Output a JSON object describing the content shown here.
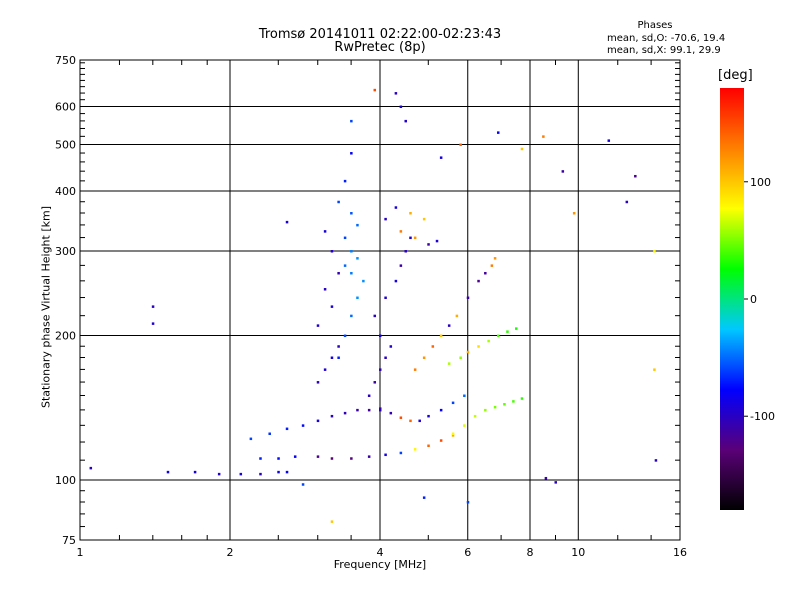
{
  "header": {
    "title": "Tromsø 20141011 02:22:00-02:23:43",
    "subtitle": "RwPretec (8p)",
    "phase_heading": "Phases",
    "phase_o": "mean, sd,O: -70.6, 19.4",
    "phase_x": "mean, sd,X:  99.1, 29.9"
  },
  "chart_data": {
    "type": "scatter",
    "title": "Tromsø 20141011 02:22:00-02:23:43",
    "subtitle": "RwPretec (8p)",
    "xlabel": "Frequency [MHz]",
    "ylabel": "Stationary phase Virtual Height [km]",
    "xscale": "log",
    "yscale": "log",
    "xlim": [
      1,
      16
    ],
    "ylim": [
      75,
      750
    ],
    "x_ticks": [
      1,
      2,
      4,
      6,
      8,
      10,
      16
    ],
    "y_ticks": [
      75,
      100,
      200,
      300,
      400,
      500,
      600,
      750
    ],
    "grid": true,
    "colorbar": {
      "label": "[deg]",
      "range": [
        -180,
        180
      ],
      "ticks": [
        -100,
        0,
        100
      ],
      "colors": [
        "#000000",
        "#5a0078",
        "#0000ff",
        "#00c8ff",
        "#00ff00",
        "#ffff00",
        "#ff8000",
        "#ff0000"
      ]
    },
    "series": [
      {
        "x": [
          1.5,
          1.7,
          1.9,
          2.1,
          2.3,
          2.5,
          2.6
        ],
        "y": [
          104,
          104,
          103,
          103,
          103,
          104,
          104
        ],
        "phase": [
          -85,
          -90,
          -95,
          -90,
          -100,
          -85,
          -80
        ]
      },
      {
        "x": [
          2.3,
          2.5,
          2.7,
          3.0,
          3.2,
          3.5,
          3.8,
          4.1,
          4.4,
          4.7,
          5.0,
          5.3,
          5.6
        ],
        "y": [
          111,
          111,
          112,
          112,
          111,
          111,
          112,
          113,
          114,
          116,
          118,
          121,
          124
        ],
        "phase": [
          -70,
          -75,
          -80,
          -120,
          -130,
          -125,
          -110,
          -90,
          -60,
          80,
          140,
          150,
          110
        ]
      },
      {
        "x": [
          2.2,
          2.4,
          2.6,
          2.8,
          3.0,
          3.2,
          3.4,
          3.6,
          3.8,
          4.0
        ],
        "y": [
          122,
          125,
          128,
          130,
          133,
          136,
          138,
          140,
          140,
          141
        ],
        "phase": [
          -60,
          -65,
          -70,
          -75,
          -90,
          -100,
          -105,
          -110,
          -115,
          -110
        ]
      },
      {
        "x": [
          4.0,
          4.2,
          4.4,
          4.6,
          4.8,
          5.0,
          5.3,
          5.6,
          5.9
        ],
        "y": [
          140,
          138,
          135,
          133,
          133,
          136,
          140,
          145,
          150
        ],
        "phase": [
          -100,
          -105,
          150,
          140,
          -95,
          -90,
          -80,
          -60,
          -50
        ]
      },
      {
        "x": [
          5.6,
          5.9,
          6.2,
          6.5,
          6.8,
          7.1,
          7.4,
          7.7
        ],
        "y": [
          125,
          130,
          136,
          140,
          142,
          144,
          146,
          148
        ],
        "phase": [
          80,
          70,
          65,
          55,
          50,
          45,
          40,
          35
        ]
      },
      {
        "x": [
          5.5,
          5.8,
          6.0,
          6.3,
          6.6,
          6.9,
          7.2,
          7.5
        ],
        "y": [
          175,
          180,
          185,
          190,
          195,
          200,
          204,
          207
        ],
        "phase": [
          60,
          55,
          110,
          90,
          60,
          40,
          35,
          30
        ]
      },
      {
        "x": [
          3.3,
          3.4,
          3.5,
          3.6,
          3.7,
          3.5,
          3.4,
          3.6,
          3.5,
          3.4,
          3.6,
          3.5,
          3.3,
          3.4,
          3.5,
          3.5
        ],
        "y": [
          180,
          200,
          220,
          240,
          260,
          270,
          280,
          290,
          300,
          320,
          340,
          360,
          380,
          420,
          480,
          560
        ],
        "phase": [
          -70,
          -60,
          -50,
          -40,
          -40,
          -45,
          -50,
          -40,
          -45,
          -60,
          -50,
          -55,
          -60,
          -70,
          -80,
          -60
        ]
      },
      {
        "x": [
          3.0,
          3.1,
          3.2,
          3.3,
          3.0,
          3.2,
          3.1,
          3.3,
          3.2,
          3.1
        ],
        "y": [
          160,
          170,
          180,
          190,
          210,
          230,
          250,
          270,
          300,
          330
        ],
        "phase": [
          -100,
          -95,
          -90,
          -100,
          -95,
          -90,
          -100,
          -105,
          -95,
          -90
        ]
      },
      {
        "x": [
          3.8,
          3.9,
          4.0,
          4.1,
          4.2,
          4.0,
          3.9,
          4.1,
          4.3,
          4.4,
          4.5,
          4.6
        ],
        "y": [
          150,
          160,
          170,
          180,
          190,
          200,
          220,
          240,
          260,
          280,
          300,
          320
        ],
        "phase": [
          -100,
          -110,
          -105,
          -100,
          -95,
          -90,
          -100,
          -95,
          -90,
          -110,
          -100,
          -95
        ]
      },
      {
        "x": [
          4.7,
          4.9,
          5.1,
          5.3,
          5.5,
          5.7,
          6.0,
          6.3,
          6.5,
          6.7,
          6.8
        ],
        "y": [
          170,
          180,
          190,
          200,
          210,
          220,
          240,
          260,
          270,
          280,
          290
        ],
        "phase": [
          130,
          120,
          140,
          100,
          -100,
          110,
          -110,
          -120,
          -115,
          130,
          120
        ]
      },
      {
        "x": [
          4.1,
          4.4,
          4.7,
          5.0,
          5.2,
          4.3,
          4.6,
          4.9
        ],
        "y": [
          350,
          330,
          320,
          310,
          315,
          370,
          360,
          350
        ],
        "phase": [
          -100,
          130,
          120,
          -110,
          -95,
          -90,
          110,
          100
        ]
      },
      {
        "x": [
          3.9,
          4.3,
          4.4,
          4.5,
          5.3,
          5.8,
          6.9,
          7.7,
          8.5,
          9.3,
          9.8,
          11.5,
          12.5,
          13.0,
          14.2
        ],
        "y": [
          650,
          640,
          600,
          560,
          470,
          500,
          530,
          490,
          520,
          440,
          360,
          510,
          380,
          430,
          300
        ],
        "phase": [
          150,
          -100,
          -90,
          -95,
          -90,
          140,
          -80,
          100,
          130,
          -110,
          120,
          -90,
          -100,
          -120,
          80
        ]
      },
      {
        "x": [
          1.05,
          1.4,
          1.4,
          2.6,
          2.8,
          3.2,
          4.9,
          6.0,
          8.6,
          9.0,
          14.3,
          14.2
        ],
        "y": [
          106,
          212,
          230,
          345,
          98,
          82,
          92,
          90,
          101,
          99,
          110,
          170
        ],
        "phase": [
          -100,
          -95,
          -100,
          -90,
          -60,
          100,
          -70,
          -60,
          -110,
          -100,
          -100,
          100
        ]
      }
    ]
  }
}
